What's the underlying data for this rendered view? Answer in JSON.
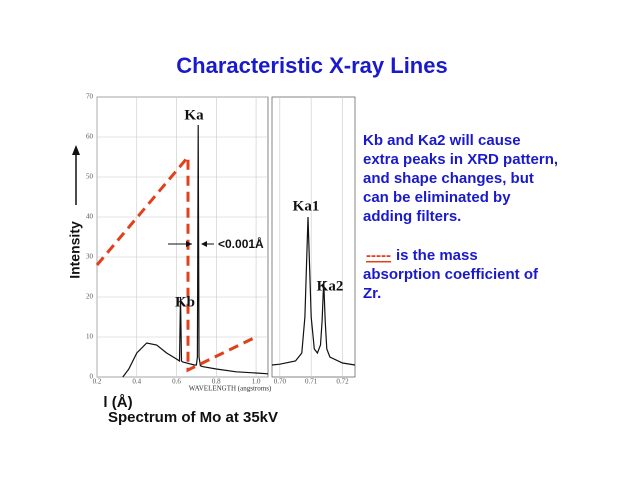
{
  "slide": {
    "title": "Characteristic X-ray Lines",
    "notes": [
      "Kb and Ka2 will cause",
      "extra peaks in XRD pattern,",
      "and shape changes, but",
      "can be eliminated by",
      "adding filters."
    ],
    "legend_dash": "-----",
    "notes2": [
      " is the mass",
      "absorption coefficient of",
      "Zr."
    ],
    "lambda_label": "l (Å)",
    "caption": "Spectrum of Mo at 35kV"
  },
  "chart_data": [
    {
      "type": "line",
      "xlabel": "WAVELENGTH (angstroms)",
      "ylabel": "Intensity",
      "annotations": [
        "Ka",
        "Kb",
        "<0.001Å"
      ],
      "x": [
        0.33,
        0.36,
        0.4,
        0.45,
        0.5,
        0.55,
        0.6,
        0.615,
        0.62,
        0.625,
        0.63,
        0.635,
        0.69,
        0.7,
        0.705,
        0.709,
        0.713,
        0.72,
        0.73,
        0.8,
        0.9,
        1.0,
        1.06
      ],
      "values": [
        0,
        2,
        6,
        8.5,
        8,
        6,
        4.5,
        4,
        20,
        4,
        3.8,
        3.7,
        3,
        3,
        5,
        63,
        5,
        2.8,
        2.6,
        2,
        1.3,
        1,
        0.8
      ],
      "color": "#111111",
      "xlim": [
        0.2,
        1.06
      ],
      "ylim": [
        0,
        70
      ],
      "xticks": [
        0.2,
        0.4,
        0.6,
        0.8,
        {
          "value": 1,
          "label": "1.0"
        }
      ],
      "yticks": [
        0,
        10,
        20,
        30,
        40,
        50,
        60,
        70
      ],
      "grid": true
    },
    {
      "type": "line",
      "annotations": [
        "Ka1",
        "Ka2"
      ],
      "x": [
        0.6975,
        0.7,
        0.705,
        0.707,
        0.708,
        0.709,
        0.71,
        0.711,
        0.712,
        0.713,
        0.7135,
        0.714,
        0.7145,
        0.715,
        0.716,
        0.72,
        0.724
      ],
      "values": [
        3,
        3.2,
        4,
        6,
        15,
        40,
        15,
        7,
        6,
        8,
        14,
        24,
        14,
        7,
        5,
        3.5,
        3
      ],
      "color": "#111111",
      "xlim": [
        0.6975,
        0.724
      ],
      "ylim": [
        0,
        70
      ],
      "xticks": [
        {
          "value": 0.7,
          "label": "0.70"
        },
        0.71,
        0.72
      ],
      "grid": true
    }
  ]
}
